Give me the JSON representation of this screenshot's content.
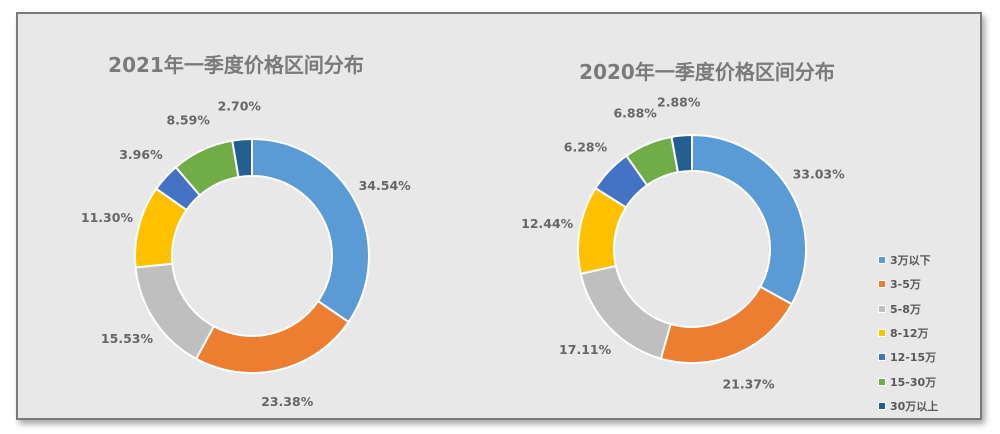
{
  "chart_data": [
    {
      "type": "pie",
      "variant": "donut",
      "title": "2021年一季度价格区间分布",
      "categories": [
        "3万以下",
        "3-5万",
        "5-8万",
        "8-12万",
        "12-15万",
        "15-30万",
        "30万以上"
      ],
      "values": [
        34.54,
        23.38,
        15.53,
        11.3,
        3.96,
        8.59,
        2.7
      ],
      "labels": [
        "34.54%",
        "23.38%",
        "15.53%",
        "11.30%",
        "3.96%",
        "8.59%",
        "2.70%"
      ],
      "legend_position": "right"
    },
    {
      "type": "pie",
      "variant": "donut",
      "title": "2020年一季度价格区间分布",
      "categories": [
        "3万以下",
        "3-5万",
        "5-8万",
        "8-12万",
        "12-15万",
        "15-30万",
        "30万以上"
      ],
      "values": [
        33.03,
        21.37,
        17.11,
        12.44,
        6.28,
        6.88,
        2.88
      ],
      "labels": [
        "33.03%",
        "21.37%",
        "17.11%",
        "12.44%",
        "6.28%",
        "6.88%",
        "2.88%"
      ],
      "legend_position": "right"
    }
  ],
  "charts": {
    "left": {
      "title": "2021年一季度价格区间分布"
    },
    "right": {
      "title": "2020年一季度价格区间分布"
    }
  },
  "colors": [
    "#5b9bd5",
    "#ed7d31",
    "#bfbfbf",
    "#ffc000",
    "#4472c4",
    "#70ad47",
    "#255e91"
  ],
  "legend": {
    "items": [
      {
        "label": "3万以下",
        "color": "#5b9bd5"
      },
      {
        "label": "3-5万",
        "color": "#ed7d31"
      },
      {
        "label": "5-8万",
        "color": "#bfbfbf"
      },
      {
        "label": "8-12万",
        "color": "#ffc000"
      },
      {
        "label": "12-15万",
        "color": "#4472c4"
      },
      {
        "label": "15-30万",
        "color": "#70ad47"
      },
      {
        "label": "30万以上",
        "color": "#255e91"
      }
    ]
  }
}
